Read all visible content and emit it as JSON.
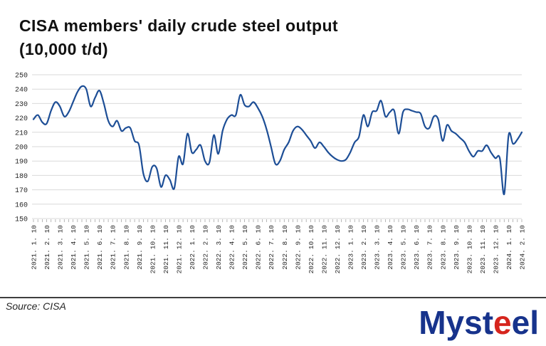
{
  "title": {
    "line1": "CISA members' daily crude steel output",
    "line2": "(10,000 t/d)"
  },
  "source": "Source: CISA",
  "logo": {
    "part1": "Myst",
    "part2": "e",
    "part3": "el",
    "blue": "#17338c",
    "red": "#d6251d"
  },
  "chart_data": {
    "type": "line",
    "title": "CISA members' daily crude steel output (10,000 t/d)",
    "unit": "10,000 t/d",
    "ylim": [
      150,
      250
    ],
    "ytick_step": 10,
    "grid": true,
    "legend": "none",
    "points_per_label": 3,
    "x_interval": "10-day readings (10th, 20th, month-end); monthly tick labels",
    "colors": {
      "line": "#1d4e96",
      "grid": "#d9d9d9",
      "tick": "#a6a6a6",
      "axis_text": "#262626"
    },
    "x_labels": [
      "2021. 1. 10",
      "2021. 2. 10",
      "2021. 3. 10",
      "2021. 4. 10",
      "2021. 5. 10",
      "2021. 6. 10",
      "2021. 7. 10",
      "2021. 8. 10",
      "2021. 9. 10",
      "2021. 10. 10",
      "2021. 11. 10",
      "2021. 12. 10",
      "2022. 1. 10",
      "2022. 2. 10",
      "2022. 3. 10",
      "2022. 4. 10",
      "2022. 5. 10",
      "2022. 6. 10",
      "2022. 7. 10",
      "2022. 8. 10",
      "2022. 9. 10",
      "2022. 10. 10",
      "2022. 11. 10",
      "2022. 12. 10",
      "2023. 1. 10",
      "2023. 2. 10",
      "2023. 3. 10",
      "2023. 4. 10",
      "2023. 5. 10",
      "2023. 6. 10",
      "2023. 7. 10",
      "2023. 8. 10",
      "2023. 9. 10",
      "2023. 10. 10",
      "2023. 11. 10",
      "2023. 12. 10",
      "2024. 1. 10",
      "2024. 2. 10"
    ],
    "values": [
      219,
      222,
      217,
      216,
      225,
      231,
      228,
      221,
      224,
      231,
      238,
      242,
      240,
      228,
      234,
      239,
      230,
      218,
      214,
      218,
      211,
      213,
      213,
      204,
      201,
      181,
      176,
      186,
      185,
      172,
      180,
      177,
      171,
      193,
      188,
      209,
      196,
      198,
      201,
      190,
      189,
      208,
      195,
      211,
      219,
      222,
      222,
      236,
      229,
      228,
      231,
      227,
      221,
      212,
      200,
      188,
      190,
      198,
      203,
      211,
      214,
      212,
      208,
      204,
      199,
      203,
      200,
      196,
      193,
      191,
      190,
      191,
      196,
      203,
      207,
      222,
      214,
      224,
      225,
      232,
      221,
      224,
      225,
      209,
      224,
      226,
      225,
      224,
      223,
      214,
      213,
      221,
      219,
      204,
      215,
      211,
      209,
      206,
      203,
      197,
      193,
      197,
      197,
      201,
      196,
      192,
      192,
      167,
      208,
      202,
      205,
      210
    ]
  }
}
